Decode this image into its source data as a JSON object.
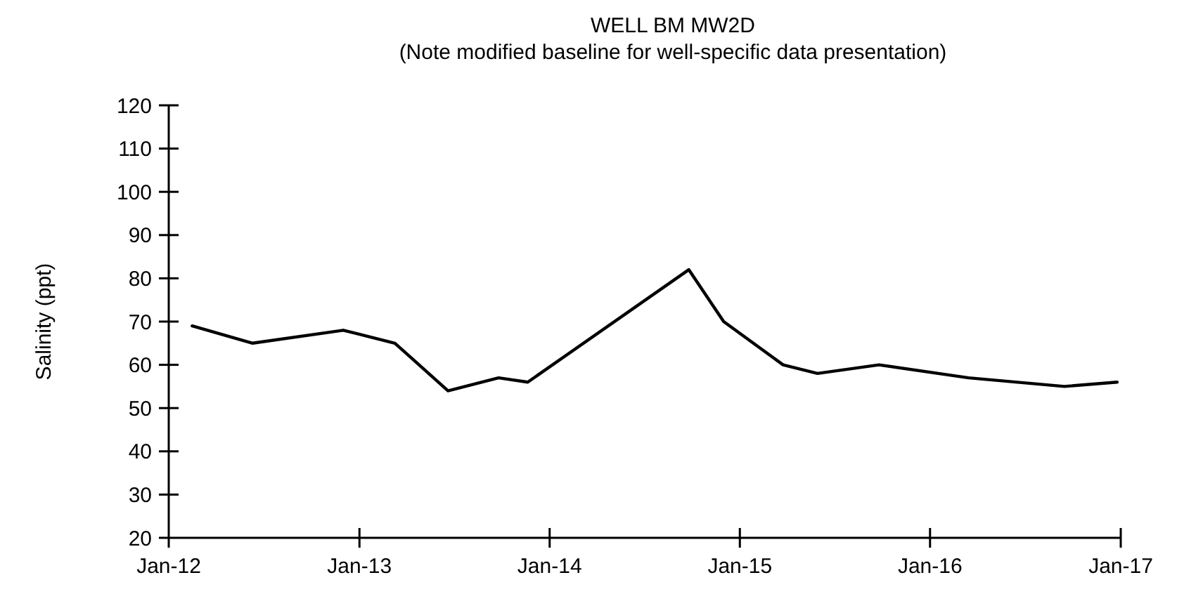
{
  "chart_data": {
    "type": "line",
    "title": "WELL BM MW2D",
    "subtitle": "(Note modified baseline for well-specific data presentation)",
    "ylabel": "Salinity (ppt)",
    "x": [
      "2012-02-15",
      "2012-06-10",
      "2012-12-01",
      "2013-03-10",
      "2013-06-20",
      "2013-09-25",
      "2013-11-20",
      "2014-09-25",
      "2014-12-01",
      "2015-03-25",
      "2015-05-30",
      "2015-09-25",
      "2016-03-15",
      "2016-09-15",
      "2016-12-25"
    ],
    "series": [
      {
        "color": "#000000",
        "values": [
          69,
          65,
          68,
          65,
          54,
          57,
          56,
          82,
          70,
          60,
          58,
          60,
          57,
          55,
          56
        ]
      }
    ],
    "xlim": [
      "2012-01-01",
      "2017-01-01"
    ],
    "xticks": [
      {
        "value": "2012-01-01",
        "label": "Jan-12"
      },
      {
        "value": "2013-01-01",
        "label": "Jan-13"
      },
      {
        "value": "2014-01-01",
        "label": "Jan-14"
      },
      {
        "value": "2015-01-01",
        "label": "Jan-15"
      },
      {
        "value": "2016-01-01",
        "label": "Jan-16"
      },
      {
        "value": "2017-01-01",
        "label": "Jan-17"
      }
    ],
    "ylim": [
      20,
      120
    ],
    "yticks": [
      20,
      30,
      40,
      50,
      60,
      70,
      80,
      90,
      100,
      110,
      120
    ],
    "grid": false,
    "marker": "none",
    "line_style": "solid"
  }
}
